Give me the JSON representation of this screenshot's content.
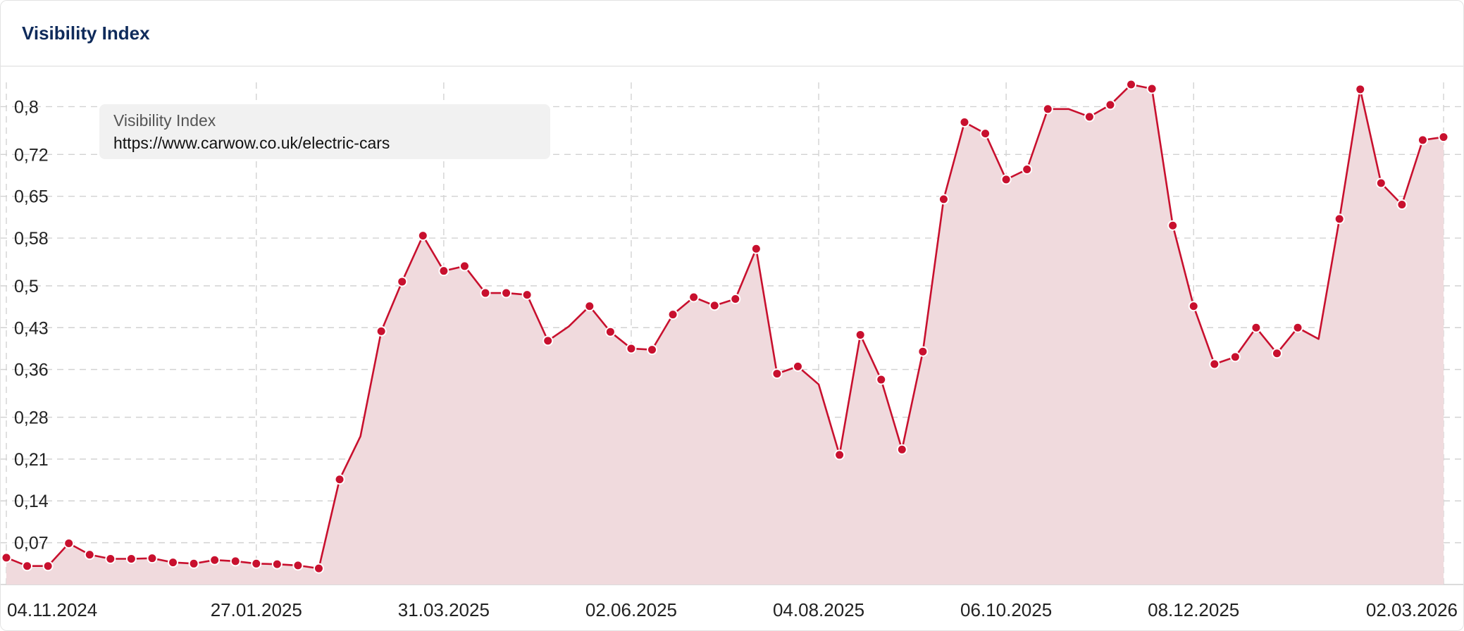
{
  "header": {
    "title": "Visibility Index"
  },
  "colors": {
    "line": "#c8102e",
    "fill": "#f0dadd",
    "grid": "#d2d2d2"
  },
  "legend": {
    "series_name": "Visibility Index",
    "url": "https://www.carwow.co.uk/electric-cars"
  },
  "chart_data": {
    "type": "area",
    "title": "Visibility Index",
    "xlabel": "",
    "ylabel": "",
    "ylim": [
      0,
      0.85
    ],
    "grid": true,
    "legend_placement": "top-left",
    "x_ticks": [
      "04.11.2024",
      "27.01.2025",
      "31.03.2025",
      "02.06.2025",
      "04.08.2025",
      "06.10.2025",
      "08.12.2025",
      "02.03.2026"
    ],
    "x_tick_index": [
      0,
      12,
      21,
      30,
      39,
      48,
      57,
      69
    ],
    "y_ticks": [
      "0,07",
      "0,14",
      "0,21",
      "0,28",
      "0,36",
      "0,43",
      "0,5",
      "0,58",
      "0,65",
      "0,72",
      "0,8"
    ],
    "y_tick_values": [
      0.07,
      0.14,
      0.21,
      0.28,
      0.36,
      0.43,
      0.5,
      0.58,
      0.65,
      0.72,
      0.8
    ],
    "series": [
      {
        "name": "https://www.carwow.co.uk/electric-cars",
        "values": [
          0.045,
          0.031,
          0.031,
          0.069,
          0.05,
          0.043,
          0.043,
          0.044,
          0.037,
          0.035,
          0.041,
          0.039,
          0.035,
          0.034,
          0.032,
          0.027,
          0.176,
          0.248,
          0.424,
          0.507,
          0.584,
          0.525,
          0.533,
          0.488,
          0.488,
          0.485,
          0.408,
          0.432,
          0.466,
          0.423,
          0.395,
          0.393,
          0.452,
          0.481,
          0.467,
          0.478,
          0.562,
          0.353,
          0.365,
          0.335,
          0.217,
          0.418,
          0.343,
          0.226,
          0.39,
          0.645,
          0.774,
          0.755,
          0.678,
          0.695,
          0.796,
          0.796,
          0.783,
          0.803,
          0.837,
          0.83,
          0.601,
          0.466,
          0.369,
          0.381,
          0.43,
          0.387,
          0.43,
          0.411,
          0.612,
          0.829,
          0.672,
          0.636,
          0.744,
          0.749
        ],
        "markers": [
          1,
          1,
          1,
          1,
          1,
          1,
          1,
          1,
          1,
          1,
          1,
          1,
          1,
          1,
          1,
          1,
          1,
          0,
          1,
          1,
          1,
          1,
          1,
          1,
          1,
          1,
          1,
          0,
          1,
          1,
          1,
          1,
          1,
          1,
          1,
          1,
          1,
          1,
          1,
          0,
          1,
          1,
          1,
          1,
          1,
          1,
          1,
          1,
          1,
          1,
          1,
          0,
          1,
          1,
          1,
          1,
          1,
          1,
          1,
          1,
          1,
          1,
          1,
          0,
          1,
          1,
          1,
          1,
          1,
          1
        ]
      }
    ]
  }
}
